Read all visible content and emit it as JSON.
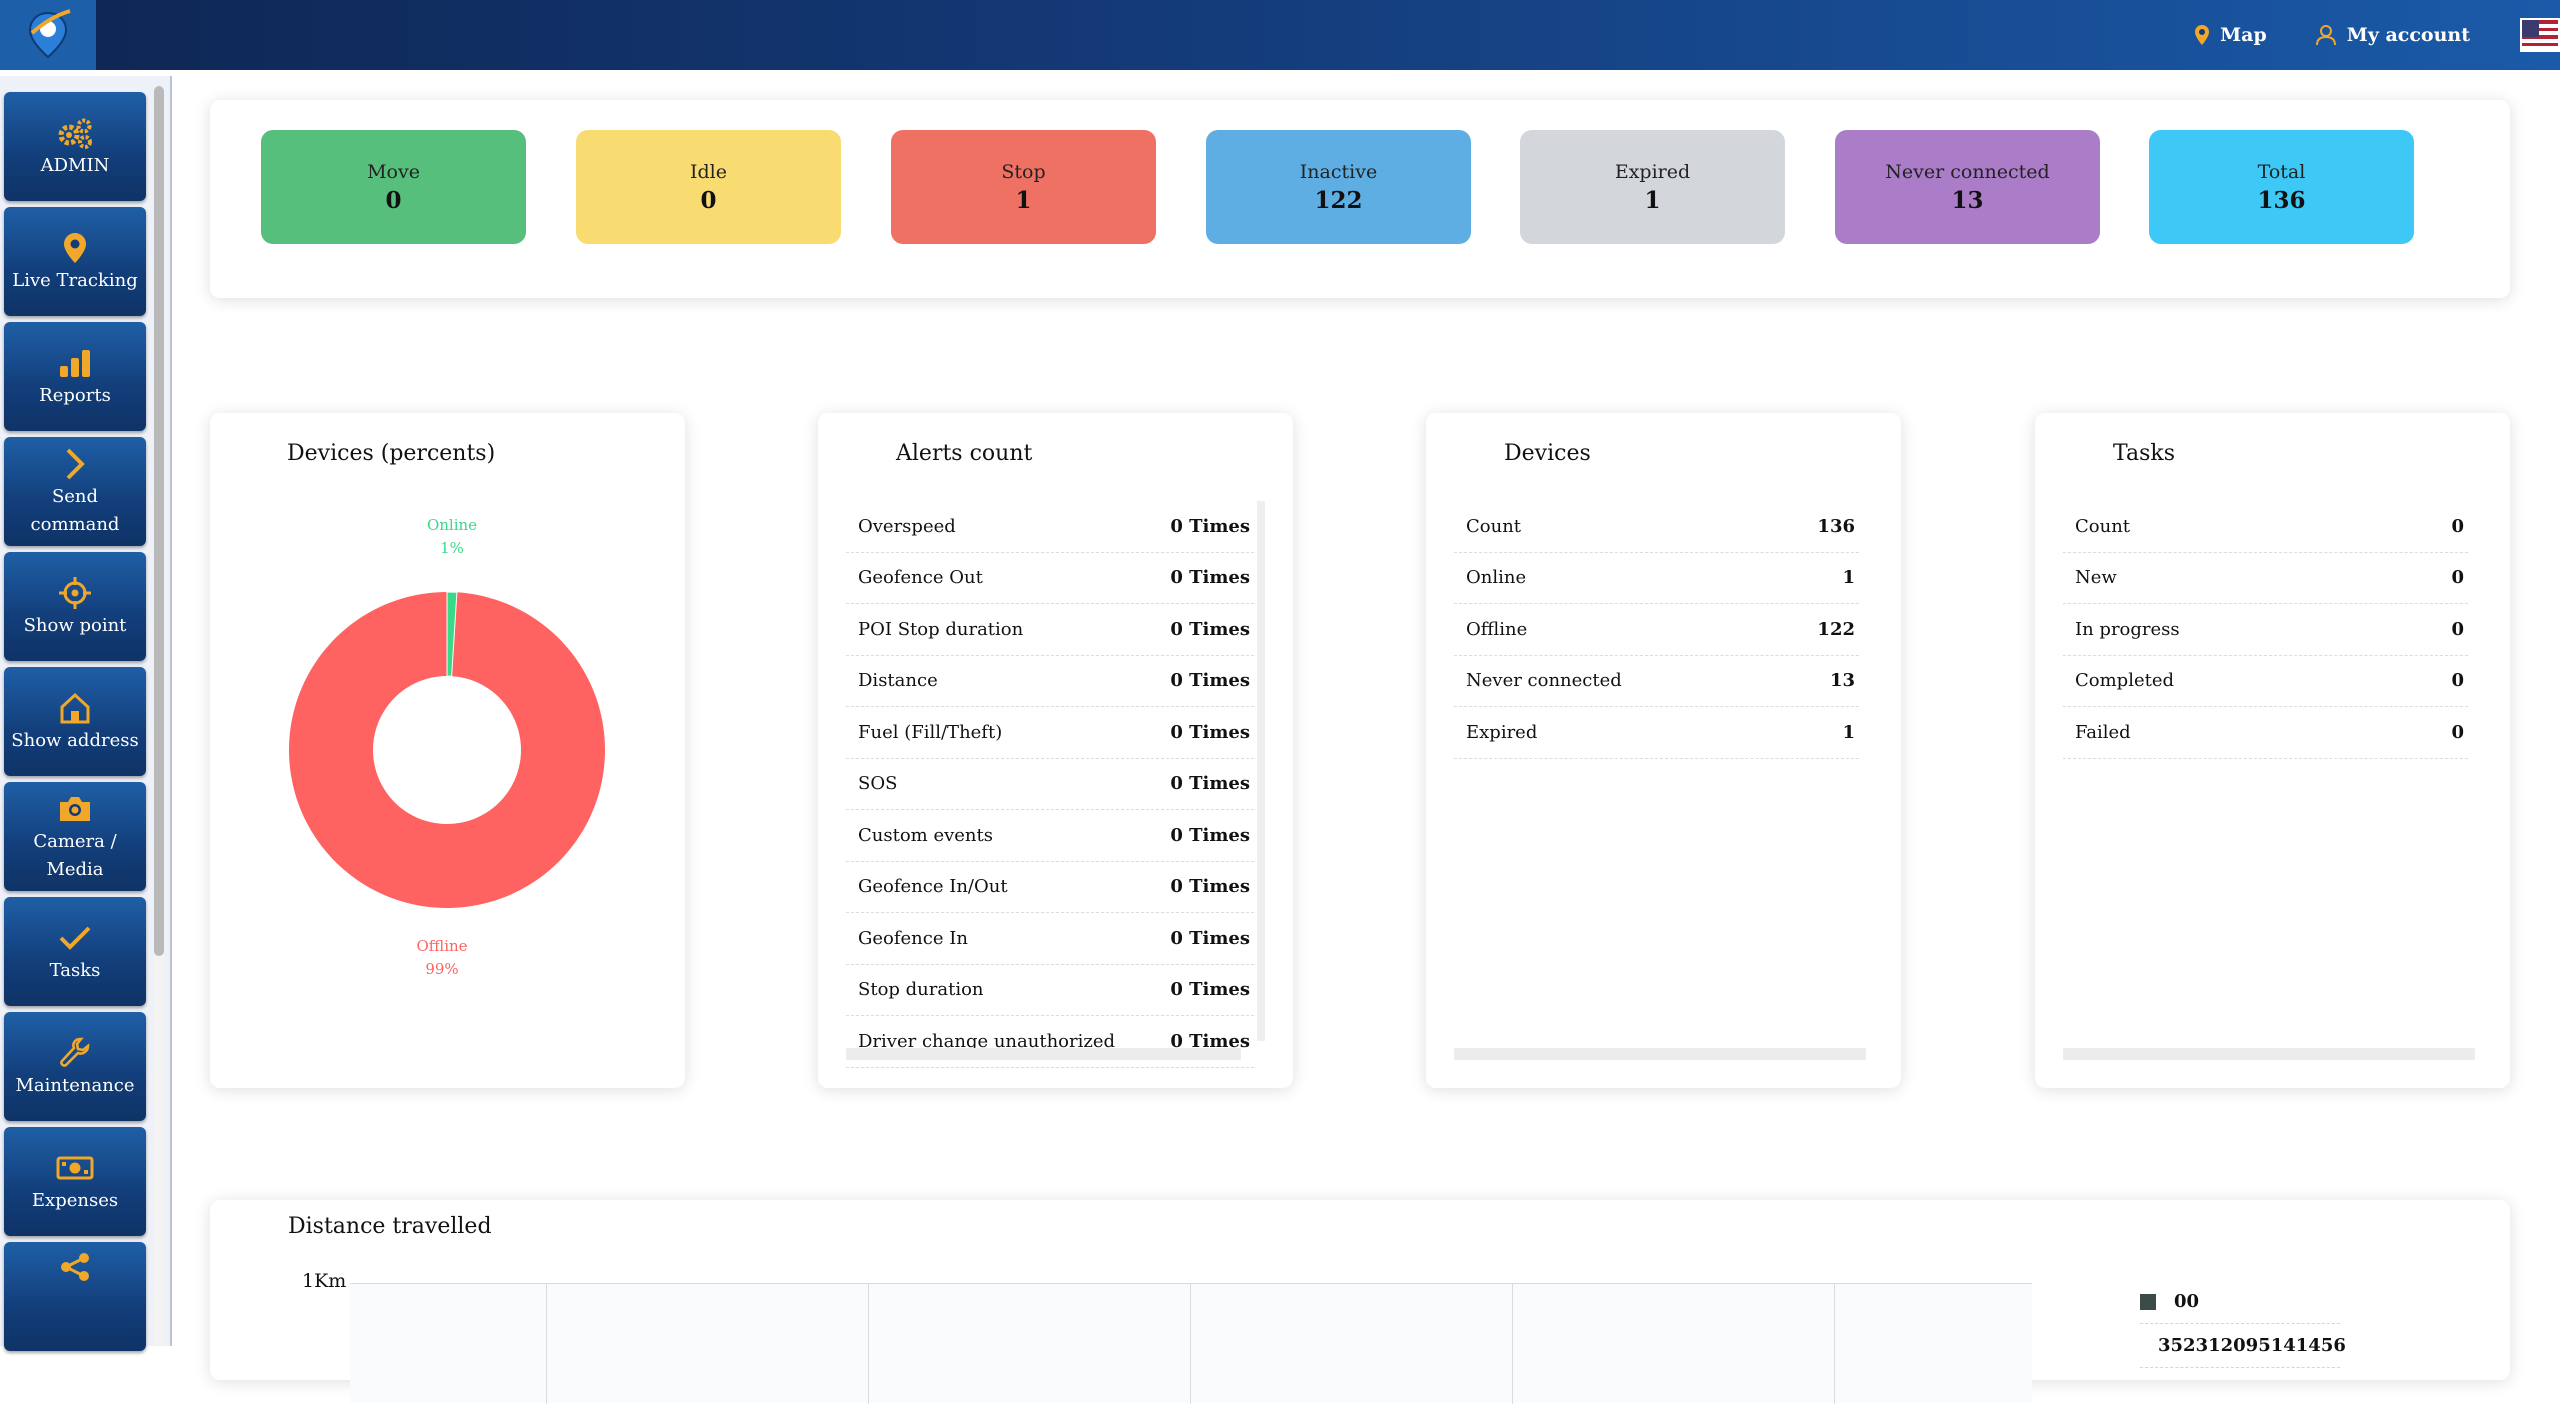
{
  "topbar": {
    "map_label": "Map",
    "account_label": "My account",
    "language_flag": "us-flag-icon"
  },
  "sidebar": {
    "items": [
      {
        "label": "ADMIN",
        "icon": "gears-icon"
      },
      {
        "label": "Live Tracking",
        "icon": "map-pin-icon"
      },
      {
        "label": "Reports",
        "icon": "bar-chart-icon"
      },
      {
        "label": "Send\ncommand",
        "icon": "chevron-right-icon"
      },
      {
        "label": "Show point",
        "icon": "crosshair-icon"
      },
      {
        "label": "Show address",
        "icon": "home-icon"
      },
      {
        "label": "Camera /\nMedia",
        "icon": "camera-icon"
      },
      {
        "label": "Tasks",
        "icon": "check-icon"
      },
      {
        "label": "Maintenance",
        "icon": "wrench-icon"
      },
      {
        "label": "Expenses",
        "icon": "money-icon"
      }
    ]
  },
  "status": [
    {
      "label": "Move",
      "value": "0",
      "color": "#56bf7c"
    },
    {
      "label": "Idle",
      "value": "0",
      "color": "#f8dc72"
    },
    {
      "label": "Stop",
      "value": "1",
      "color": "#ef7163"
    },
    {
      "label": "Inactive",
      "value": "122",
      "color": "#5eaee4"
    },
    {
      "label": "Expired",
      "value": "1",
      "color": "#d3d7db"
    },
    {
      "label": "Never connected",
      "value": "13",
      "color": "#ab7cc8"
    },
    {
      "label": "Total",
      "value": "136",
      "color": "#3ec8f5"
    }
  ],
  "devices_percents": {
    "title": "Devices (percents)",
    "online_label": "Online",
    "online_pct": "1%",
    "offline_label": "Offline",
    "offline_pct": "99%",
    "online_color": "#39d98a",
    "offline_color": "#ff6361"
  },
  "alerts": {
    "title": "Alerts count",
    "rows": [
      {
        "label": "Overspeed",
        "value": "0 Times"
      },
      {
        "label": "Geofence Out",
        "value": "0 Times"
      },
      {
        "label": "POI Stop duration",
        "value": "0 Times"
      },
      {
        "label": "Distance",
        "value": "0 Times"
      },
      {
        "label": "Fuel (Fill/Theft)",
        "value": "0 Times"
      },
      {
        "label": "SOS",
        "value": "0 Times"
      },
      {
        "label": "Custom events",
        "value": "0 Times"
      },
      {
        "label": "Geofence In/Out",
        "value": "0 Times"
      },
      {
        "label": "Geofence In",
        "value": "0 Times"
      },
      {
        "label": "Stop duration",
        "value": "0 Times"
      },
      {
        "label": "Driver change unauthorized",
        "value": "0 Times"
      }
    ]
  },
  "devices": {
    "title": "Devices",
    "rows": [
      {
        "label": "Count",
        "value": "136"
      },
      {
        "label": "Online",
        "value": "1"
      },
      {
        "label": "Offline",
        "value": "122"
      },
      {
        "label": "Never connected",
        "value": "13"
      },
      {
        "label": "Expired",
        "value": "1"
      }
    ]
  },
  "tasks": {
    "title": "Tasks",
    "rows": [
      {
        "label": "Count",
        "value": "0"
      },
      {
        "label": "New",
        "value": "0"
      },
      {
        "label": "In progress",
        "value": "0"
      },
      {
        "label": "Completed",
        "value": "0"
      },
      {
        "label": "Failed",
        "value": "0"
      }
    ]
  },
  "distance": {
    "title": "Distance travelled",
    "y_label": "1Km",
    "legend": [
      {
        "label": "00",
        "color": "#3d4a4a"
      },
      {
        "label": "352312095141456",
        "color": "#a9d3f5"
      }
    ]
  },
  "chart_data": {
    "type": "pie",
    "title": "Devices (percents)",
    "categories": [
      "Online",
      "Offline"
    ],
    "values": [
      1,
      99
    ]
  }
}
